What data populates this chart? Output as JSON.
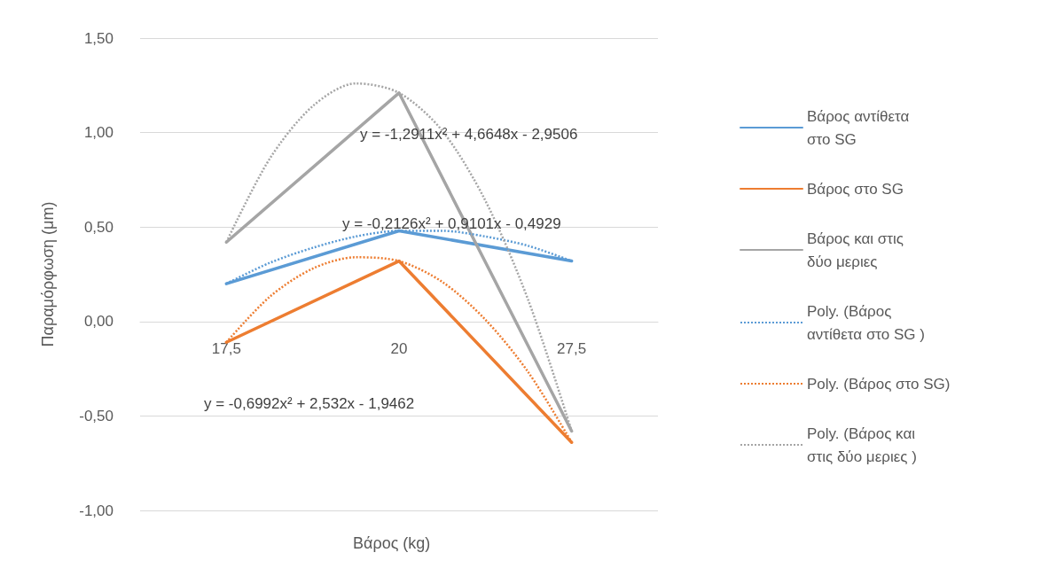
{
  "chart_data": {
    "type": "line",
    "xlabel": "Βάρος (kg)",
    "ylabel": "Παραμόρφωση (μm)",
    "categories": [
      "17,5",
      null,
      null,
      null,
      "20",
      null,
      null,
      null,
      "27,5"
    ],
    "series": [
      {
        "name": "Βάρος αντίθετα στο SG",
        "color": "#5b9bd5",
        "values": [
          0.2,
          null,
          null,
          null,
          0.48,
          null,
          null,
          null,
          0.32
        ]
      },
      {
        "name": "Βάρος στο SG",
        "color": "#ed7d31",
        "values": [
          -0.11,
          null,
          null,
          null,
          0.32,
          null,
          null,
          null,
          -0.64
        ]
      },
      {
        "name": "Βάρος και στις δύο μεριες",
        "color": "#a5a5a5",
        "values": [
          0.42,
          null,
          null,
          null,
          1.21,
          null,
          null,
          null,
          -0.58
        ]
      },
      {
        "name": "Poly. (Βάρος αντίθετα στο SG )",
        "color": "#5b9bd5",
        "line_style": "dotted",
        "values": [
          0.2,
          0.31,
          0.39,
          0.45,
          0.48,
          0.48,
          0.45,
          0.4,
          0.32
        ]
      },
      {
        "name": "Poly. (Βάρος στο SG)",
        "color": "#ed7d31",
        "line_style": "dotted",
        "values": [
          -0.11,
          0.13,
          0.28,
          0.34,
          0.32,
          0.21,
          0.01,
          -0.27,
          -0.64
        ]
      },
      {
        "name": "Poly. (Βάρος και στις δύο μεριες )",
        "color": "#a5a5a5",
        "line_style": "dotted",
        "values": [
          0.42,
          0.86,
          1.14,
          1.26,
          1.21,
          1.01,
          0.64,
          0.11,
          -0.58
        ]
      }
    ],
    "annotations": [
      "y = -1,2911x² + 4,6648x - 2,9506",
      "y = -0,2126x² + 0,9101x - 0,4929",
      "y = -0,6992x² + 2,532x - 1,9462"
    ],
    "ylim": [
      -1,
      1.5
    ],
    "yticks": [
      {
        "value": -1,
        "label": "-1,00"
      },
      {
        "value": -0.5,
        "label": "-0,50"
      },
      {
        "value": 0,
        "label": "0,00"
      },
      {
        "value": 0.5,
        "label": "0,50"
      },
      {
        "value": 1,
        "label": "1,00"
      },
      {
        "value": 1.5,
        "label": "1,50"
      }
    ],
    "grid": "y",
    "legend": "right",
    "marker": "none",
    "line_style": "solid"
  }
}
